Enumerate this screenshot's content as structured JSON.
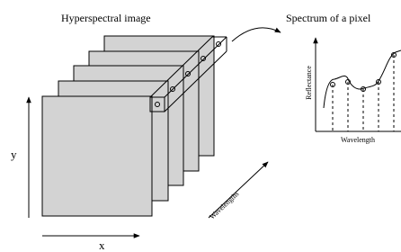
{
  "left_panel": {
    "title": "Hyperspectral image",
    "x_label": "x",
    "y_label": "y",
    "depth_label": "Wavelengths"
  },
  "right_panel": {
    "title": "Spectrum of a pixel",
    "y_label": "Reflectance",
    "x_label": "Wavelength"
  }
}
